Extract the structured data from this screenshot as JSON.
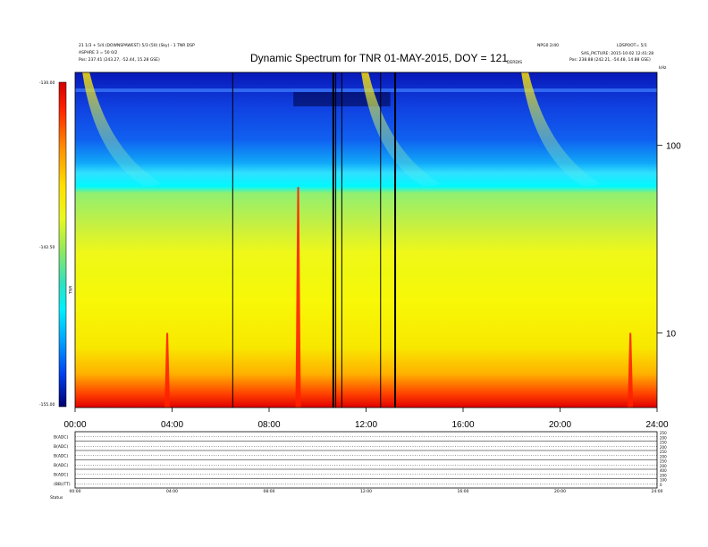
{
  "header": {
    "title": "Dynamic Spectrum for TNR 01-MAY-2015, DOY = 121",
    "left_line1": "21 1/3 + 5/4 (DOWNSPAWEST) 5/3 (50) (Sky) - 1 TNR DSP",
    "left_line2": "ASPHRE 3 = 50 0/2",
    "left_line3": "Pos:     237.41 (243.27, -52.44, 15.28 GSE)",
    "right_line1": "NPG0 2/40",
    "right_line2": "LDSPOOT= 5/1",
    "right_line3": "SAS_PICTURE: 2015-10-02 12:41:28",
    "right_line4": "Pos:   238.88 (242.21, -54.48, 14.88 GSE)",
    "top_right_marker": "kHz",
    "event_label": "DERDIS"
  },
  "colorbar": {
    "unit_label": "TNR",
    "tick_labels": [
      "-130.00",
      "-142.50",
      "-155.00"
    ],
    "colors": [
      "#d00000",
      "#ff3000",
      "#ff8c00",
      "#ffd800",
      "#f8f800",
      "#b8f040",
      "#70e870",
      "#30d8d8",
      "#00ffff",
      "#00a8ff",
      "#0050ff",
      "#0000d0",
      "#000080"
    ]
  },
  "chart_data": {
    "type": "heatmap",
    "title": "Dynamic Spectrum for TNR 01-MAY-2015, DOY = 121",
    "x_tick_labels": [
      "00:00",
      "04:00",
      "08:00",
      "12:00",
      "16:00",
      "20:00",
      "24:00"
    ],
    "x_range_hours": [
      0,
      24
    ],
    "y_scale": "log",
    "y_tick_labels": [
      "100",
      "10"
    ],
    "y_ticks_khz": [
      100,
      10
    ],
    "y_range_khz": [
      4,
      245
    ],
    "color_range": [
      -155.0,
      -130.0
    ],
    "data_gap_lines_hours": [
      6.5,
      10.65,
      10.75,
      11.0,
      12.6,
      13.2
    ],
    "type_iii_bursts_hours": [
      0.3,
      11.8,
      18.4
    ],
    "intense_spikes": [
      {
        "hour": 9.2,
        "khz_low": 4,
        "khz_high": 60
      },
      {
        "hour": 3.8,
        "khz_low": 4,
        "khz_high": 10
      },
      {
        "hour": 22.9,
        "khz_low": 4,
        "khz_high": 10
      }
    ],
    "lower_panel_row_labels": [
      "B(ADC)",
      "B(ADC)",
      "B(ADC)",
      "B(ADC)",
      "B(ADC)",
      "(BB)(TT)"
    ],
    "lower_panel_right_ticks": [
      "250",
      "200",
      "250",
      "200",
      "250",
      "200",
      "250",
      "200",
      "400",
      "200",
      "100",
      "0"
    ],
    "lower_panel_x_labels": [
      "00:00",
      "04:00",
      "08:00",
      "12:00",
      "16:00",
      "20:00",
      "24:00"
    ],
    "footer_label": "Status"
  }
}
